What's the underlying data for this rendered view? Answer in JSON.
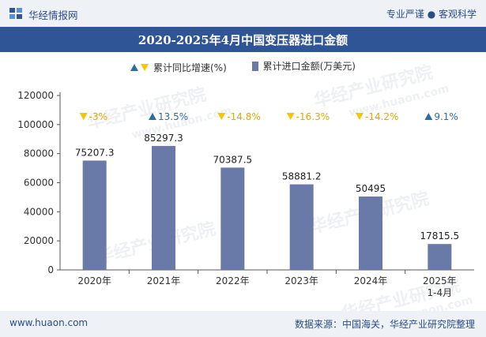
{
  "header": {
    "logo_text": "华经情报网",
    "tagline": "专业严谨 ● 客观科学"
  },
  "title": "2020-2025年4月中国变压器进口金额",
  "legend": {
    "growth_label": "累计同比增速(%)",
    "amount_label": "累计进口金额(万美元)"
  },
  "watermark": {
    "text": "华经产业研究院",
    "url": "www.huaon.com"
  },
  "colors": {
    "bar": "#6a7aa8",
    "up": "#2f6d9f",
    "down": "#f7c600",
    "title_bg": "#2f5597",
    "brand_text": "#2b4d86"
  },
  "chart_data": {
    "type": "bar",
    "categories": [
      "2020年",
      "2021年",
      "2022年",
      "2023年",
      "2024年",
      "2025年\n1-4月"
    ],
    "series": [
      {
        "name": "累计进口金额(万美元)",
        "values": [
          75207.3,
          85297.3,
          70387.5,
          58881.2,
          50495,
          17815.5
        ],
        "labels": [
          "75207.3",
          "85297.3",
          "70387.5",
          "58881.2",
          "50495",
          "17815.5"
        ]
      },
      {
        "name": "累计同比增速(%)",
        "values": [
          -3,
          13.5,
          -14.8,
          -16.3,
          -14.2,
          9.1
        ],
        "labels": [
          "-3%",
          "13.5%",
          "-14.8%",
          "-16.3%",
          "-14.2%",
          "9.1%"
        ]
      }
    ],
    "ylim": [
      0,
      120000
    ],
    "yticks": [
      0,
      20000,
      40000,
      60000,
      80000,
      100000,
      120000
    ],
    "grid": false,
    "legend_position": "top-center"
  },
  "footer": {
    "website": "www.huaon.com",
    "source": "数据来源：中国海关，华经产业研究院整理"
  }
}
